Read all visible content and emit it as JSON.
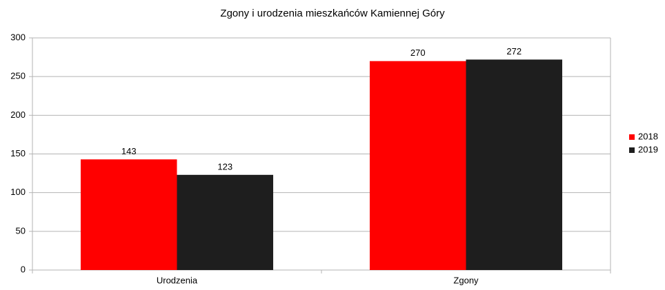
{
  "chart_data": {
    "type": "bar",
    "title": "Zgony i urodzenia mieszkańców Kamiennej Góry",
    "categories": [
      "Urodzenia",
      "Zgony"
    ],
    "series": [
      {
        "name": "2018",
        "color": "#ff0000",
        "values": [
          143,
          270
        ]
      },
      {
        "name": "2019",
        "color": "#1e1e1e",
        "values": [
          123,
          272
        ]
      }
    ],
    "ylim": [
      0,
      300
    ],
    "yticks": [
      0,
      50,
      100,
      150,
      200,
      250,
      300
    ],
    "grid": true,
    "legend": "right"
  }
}
